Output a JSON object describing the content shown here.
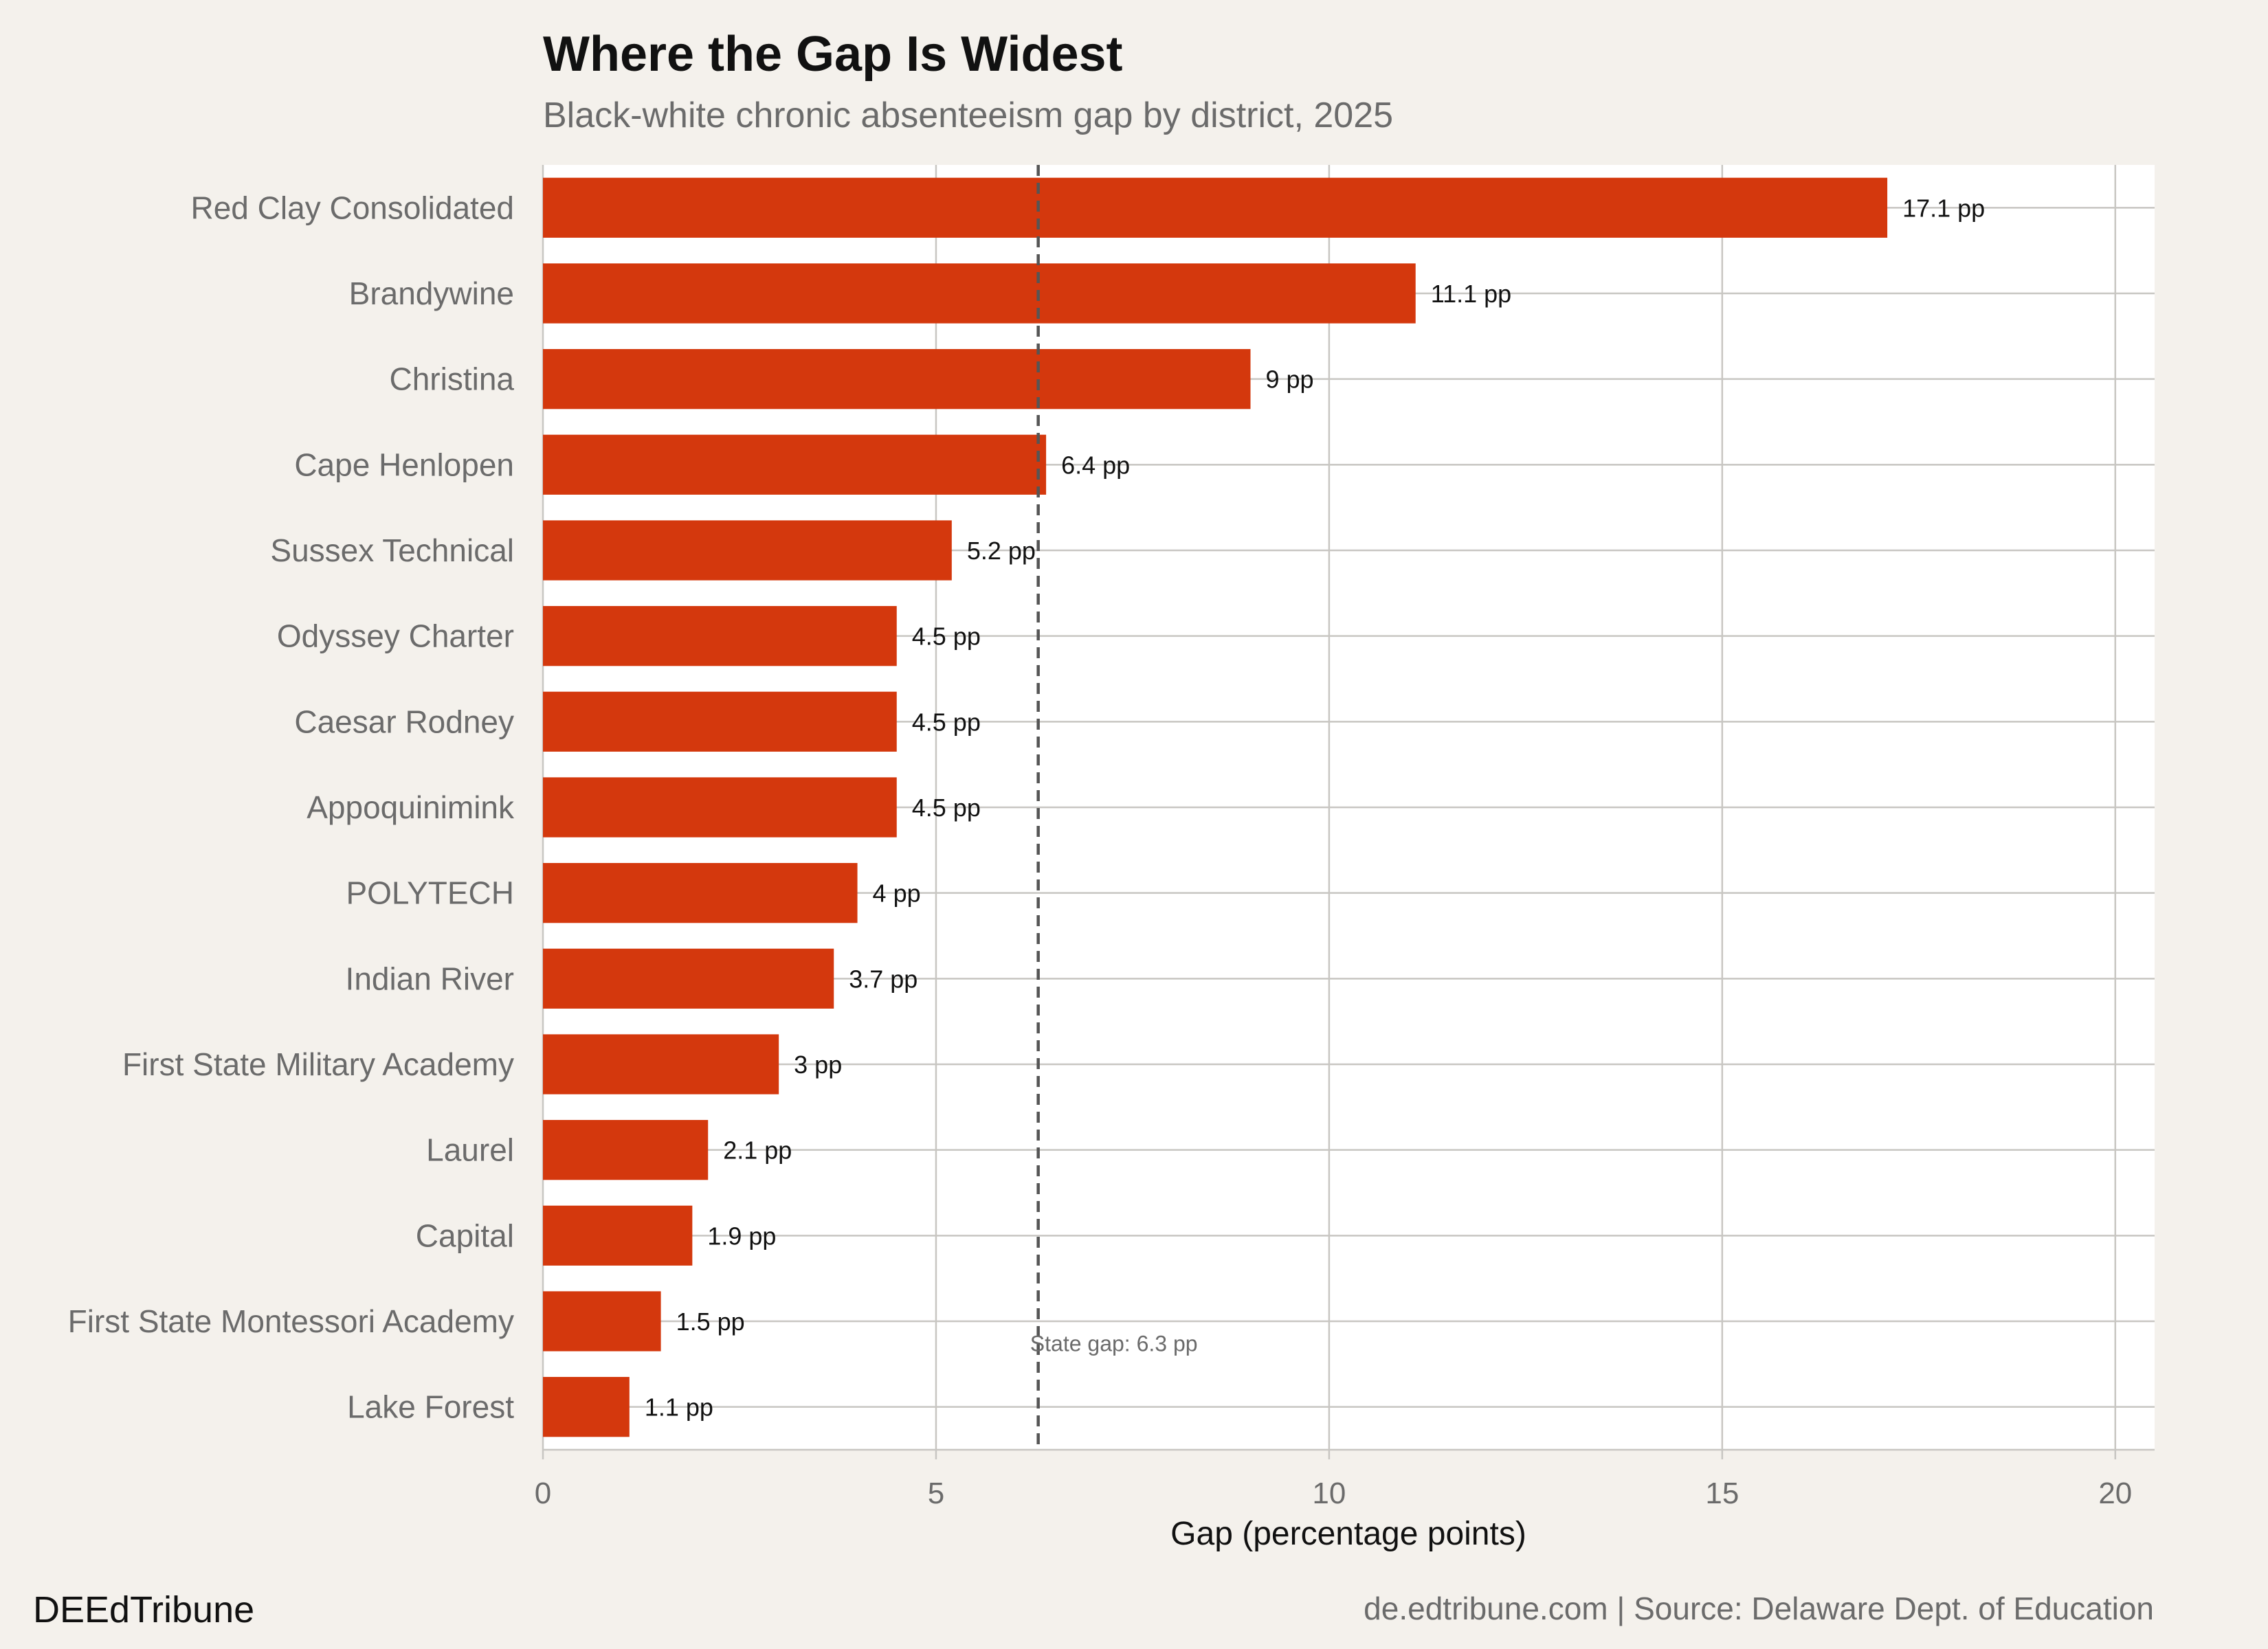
{
  "chart_data": {
    "type": "bar",
    "orientation": "horizontal",
    "title": "Where the Gap Is Widest",
    "subtitle": "Black-white chronic absenteeism gap by district, 2025",
    "xlabel": "Gap (percentage points)",
    "xlim": [
      0,
      20.5
    ],
    "xticks": [
      0,
      5,
      10,
      15,
      20
    ],
    "grid": true,
    "bar_color": "#d4380d",
    "categories": [
      "Red Clay Consolidated",
      "Brandywine",
      "Christina",
      "Cape Henlopen",
      "Sussex Technical",
      "Odyssey Charter",
      "Caesar Rodney",
      "Appoquinimink",
      "POLYTECH",
      "Indian River",
      "First State Military Academy",
      "Laurel",
      "Capital",
      "First State Montessori Academy",
      "Lake Forest"
    ],
    "values": [
      17.1,
      11.1,
      9.0,
      6.4,
      5.2,
      4.5,
      4.5,
      4.5,
      4.0,
      3.7,
      3.0,
      2.1,
      1.9,
      1.5,
      1.1
    ],
    "value_labels": [
      "17.1 pp",
      "11.1 pp",
      "9 pp",
      "6.4 pp",
      "5.2 pp",
      "4.5 pp",
      "4.5 pp",
      "4.5 pp",
      "4 pp",
      "3.7 pp",
      "3 pp",
      "2.1 pp",
      "1.9 pp",
      "1.5 pp",
      "1.1 pp"
    ],
    "reference_line": {
      "value": 6.3,
      "label": "State gap: 6.3 pp",
      "style": "dashed"
    }
  },
  "footer": {
    "brand": "DEEdTribune",
    "source": "de.edtribune.com | Source: Delaware Dept. of Education"
  }
}
